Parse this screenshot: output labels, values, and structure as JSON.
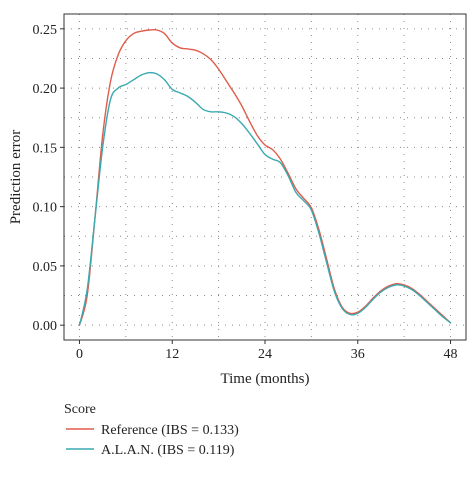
{
  "chart_data": {
    "type": "line",
    "title": "",
    "xlabel": "Time (months)",
    "ylabel": "Prediction error",
    "xlim": [
      -2,
      50
    ],
    "ylim": [
      -0.0125,
      0.2625
    ],
    "x_ticks": [
      0,
      12,
      24,
      36,
      48
    ],
    "x_tick_labels": [
      "0",
      "12",
      "24",
      "36",
      "48"
    ],
    "y_ticks": [
      0.0,
      0.05,
      0.1,
      0.15,
      0.2,
      0.25
    ],
    "y_tick_labels": [
      "0.00",
      "0.05",
      "0.10",
      "0.15",
      "0.20",
      "0.25"
    ],
    "grid": "dotted",
    "legend": {
      "title": "Score",
      "placement": "bottom-left"
    },
    "series": [
      {
        "name": "Reference (IBS = 0.133)",
        "color": "#e05c4b",
        "x": [
          0,
          1,
          2,
          3,
          4,
          5,
          6,
          7,
          8,
          9,
          10,
          11,
          12,
          13,
          14,
          15,
          16,
          17,
          18,
          19,
          20,
          21,
          22,
          23,
          24,
          25,
          26,
          27,
          28,
          29,
          30,
          31,
          32,
          33,
          34,
          35,
          36,
          37,
          38,
          39,
          40,
          41,
          42,
          43,
          44,
          45,
          46,
          47,
          48
        ],
        "values": [
          0.0,
          0.025,
          0.09,
          0.16,
          0.205,
          0.228,
          0.24,
          0.246,
          0.248,
          0.249,
          0.249,
          0.246,
          0.238,
          0.234,
          0.233,
          0.232,
          0.229,
          0.224,
          0.216,
          0.206,
          0.196,
          0.185,
          0.172,
          0.16,
          0.152,
          0.148,
          0.14,
          0.128,
          0.115,
          0.107,
          0.099,
          0.08,
          0.055,
          0.03,
          0.015,
          0.01,
          0.011,
          0.016,
          0.023,
          0.029,
          0.033,
          0.035,
          0.034,
          0.031,
          0.026,
          0.02,
          0.014,
          0.008,
          0.002
        ]
      },
      {
        "name": "A.L.A.N. (IBS = 0.119)",
        "color": "#3aa9b0",
        "x": [
          0,
          1,
          2,
          3,
          4,
          5,
          6,
          7,
          8,
          9,
          10,
          11,
          12,
          13,
          14,
          15,
          16,
          17,
          18,
          19,
          20,
          21,
          22,
          23,
          24,
          25,
          26,
          27,
          28,
          29,
          30,
          31,
          32,
          33,
          34,
          35,
          36,
          37,
          38,
          39,
          40,
          41,
          42,
          43,
          44,
          45,
          46,
          47,
          48
        ],
        "values": [
          0.0,
          0.03,
          0.09,
          0.15,
          0.19,
          0.2,
          0.203,
          0.207,
          0.211,
          0.213,
          0.212,
          0.207,
          0.199,
          0.196,
          0.193,
          0.188,
          0.182,
          0.18,
          0.18,
          0.179,
          0.176,
          0.17,
          0.162,
          0.153,
          0.144,
          0.14,
          0.137,
          0.126,
          0.112,
          0.105,
          0.097,
          0.077,
          0.052,
          0.028,
          0.014,
          0.009,
          0.01,
          0.015,
          0.022,
          0.028,
          0.032,
          0.034,
          0.033,
          0.03,
          0.025,
          0.019,
          0.013,
          0.007,
          0.002
        ]
      }
    ]
  }
}
